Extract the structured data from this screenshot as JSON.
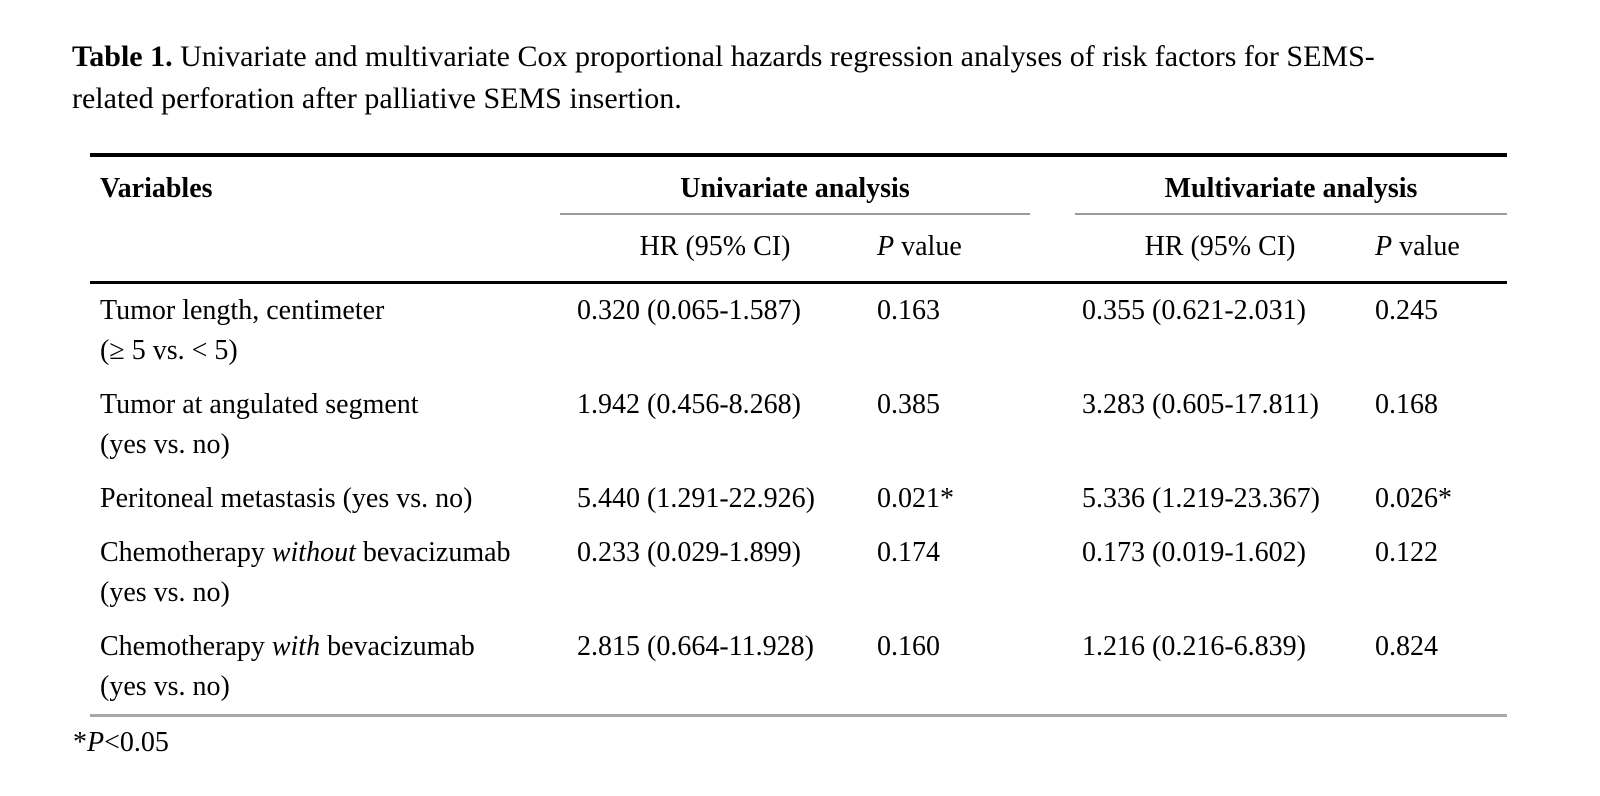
{
  "title": {
    "label": "Table 1.",
    "text": " Univariate and multivariate Cox proportional hazards regression analyses of risk factors for SEMS-related perforation after palliative SEMS insertion."
  },
  "table": {
    "header": {
      "variables": "Variables",
      "univariate_group": "Univariate analysis",
      "multivariate_group": "Multivariate analysis",
      "hr_label": "HR (95% CI)",
      "p_italic": "P",
      "p_rest": " value"
    },
    "rows": [
      {
        "var_pre": "Tumor length, centimeter",
        "var_em": "",
        "var_post": "",
        "var_line2": "(≥ 5 vs. < 5)",
        "uni_hr": "0.320 (0.065-1.587)",
        "uni_p": "0.163",
        "multi_hr": "0.355 (0.621-2.031)",
        "multi_p": "0.245"
      },
      {
        "var_pre": "Tumor at angulated segment",
        "var_em": "",
        "var_post": "",
        "var_line2": "(yes vs. no)",
        "uni_hr": "1.942 (0.456-8.268)",
        "uni_p": "0.385",
        "multi_hr": "3.283 (0.605-17.811)",
        "multi_p": "0.168"
      },
      {
        "var_pre": "Peritoneal metastasis (yes vs. no)",
        "var_em": "",
        "var_post": "",
        "var_line2": "",
        "uni_hr": "5.440 (1.291-22.926)",
        "uni_p": "0.021*",
        "multi_hr": "5.336 (1.219-23.367)",
        "multi_p": "0.026*"
      },
      {
        "var_pre": "Chemotherapy ",
        "var_em": "without",
        "var_post": " bevacizumab",
        "var_line2": "(yes vs. no)",
        "uni_hr": "0.233 (0.029-1.899)",
        "uni_p": "0.174",
        "multi_hr": "0.173 (0.019-1.602)",
        "multi_p": "0.122"
      },
      {
        "var_pre": "Chemotherapy ",
        "var_em": "with",
        "var_post": " bevacizumab",
        "var_line2": "(yes vs. no)",
        "uni_hr": "2.815 (0.664-11.928)",
        "uni_p": "0.160",
        "multi_hr": "1.216 (0.216-6.839)",
        "multi_p": "0.824"
      }
    ],
    "footnote": {
      "star": "*",
      "p_italic": "P",
      "rest": "<0.05"
    }
  },
  "colors": {
    "rule_black": "#000000",
    "rule_gray": "#9a9a9a",
    "text": "#000000",
    "background": "#ffffff"
  }
}
